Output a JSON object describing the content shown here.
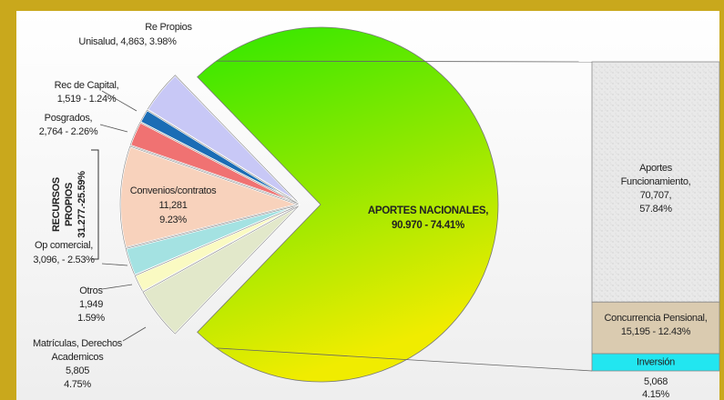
{
  "chart_data": {
    "type": "pie_of_bar",
    "pie": {
      "labels": [
        [
          "APORTES NACIONALES,",
          "90.970 - 74.41%"
        ],
        [
          "Re Propios",
          "Unisalud, 4,863, 3.98%"
        ],
        [
          "Rec de Capital,",
          "1,519  - 1.24%"
        ],
        [
          "Posgrados,",
          "2,764  - 2.26%"
        ],
        [
          "Convenios/contratos",
          "11,281",
          "9.23%"
        ],
        [
          "Op comercial,",
          "3,096,  -  2.53%"
        ],
        [
          "Otros",
          "1,949",
          "1.59%"
        ],
        [
          "Matrículas, Derechos",
          "Academicos",
          "5,805",
          "4.75%"
        ]
      ],
      "values": [
        74.41,
        3.98,
        1.24,
        2.26,
        9.23,
        2.53,
        1.59,
        4.75
      ],
      "colors": [
        "gradient",
        "#c8c8f6",
        "#1b6db5",
        "#f07272",
        "#f8d2bc",
        "#a4e2e2",
        "#fafac2",
        "#e2e8ca"
      ]
    },
    "bar": {
      "labels": [
        [
          "Aportes",
          "Funcionamiento,",
          "70,707,",
          "57.84%"
        ],
        [
          "Concurrencia Pensional,",
          "15,195  - 12.43%"
        ],
        [
          "Inversión",
          "5,068",
          "4.15%"
        ]
      ],
      "values": [
        57.84,
        12.43,
        4.15
      ],
      "colors": [
        "#e9e9e9",
        "#dacbb0",
        "#22e6f0"
      ]
    },
    "group_label": [
      "RECURSOS",
      "PROPIOS",
      "31.277.-25.59%"
    ]
  }
}
